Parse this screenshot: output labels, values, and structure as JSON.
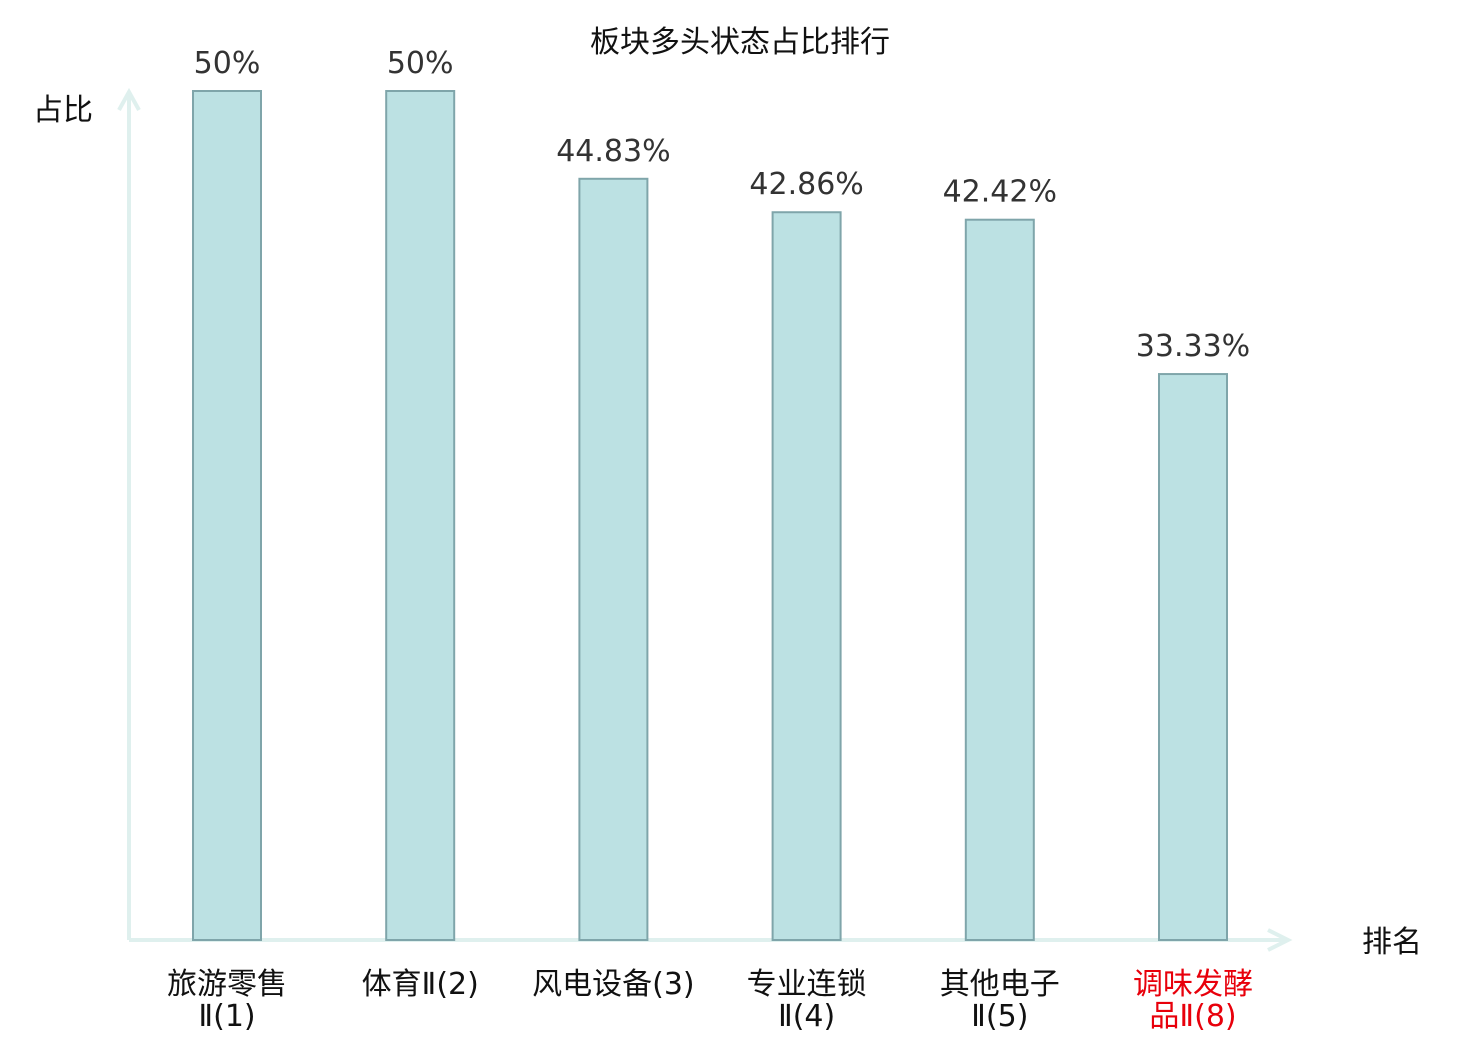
{
  "chart_data": {
    "type": "bar",
    "title": "板块多头状态占比排行",
    "ylabel": "占比",
    "xlabel": "排名",
    "ylim": [
      0,
      50
    ],
    "grid": false,
    "legend": "none",
    "categories": [
      {
        "line1": "旅游零售",
        "line2": "Ⅱ(1)",
        "highlight": false
      },
      {
        "line1": "体育Ⅱ(2)",
        "line2": "",
        "highlight": false
      },
      {
        "line1": "风电设备(3)",
        "line2": "",
        "highlight": false
      },
      {
        "line1": "专业连锁",
        "line2": "Ⅱ(4)",
        "highlight": false
      },
      {
        "line1": "其他电子",
        "line2": "Ⅱ(5)",
        "highlight": false
      },
      {
        "line1": "调味发酵",
        "line2": "品Ⅱ(8)",
        "highlight": true
      }
    ],
    "values": [
      50,
      50,
      44.83,
      42.86,
      42.42,
      33.33
    ],
    "value_labels": [
      "50%",
      "50%",
      "44.83%",
      "42.86%",
      "42.42%",
      "33.33%"
    ],
    "colors": {
      "bar_fill": "#bce1e3",
      "bar_stroke": "#7fa5aa",
      "axis": "#dff0ee",
      "text": "#111111",
      "value_text": "#333333",
      "highlight_text": "#e8000b"
    }
  }
}
